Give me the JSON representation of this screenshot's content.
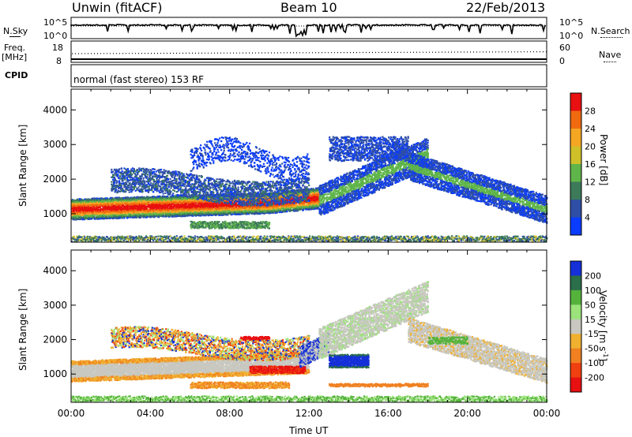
{
  "header": {
    "radar": "Unwin (fitACF)",
    "beam": "Beam 10",
    "date": "22/Feb/2013"
  },
  "top_panels": {
    "nsky_label": "N.Sky",
    "nsky_tick_high": "10^5",
    "nsky_tick_low": "10^0",
    "nsearch_label": "N.Search",
    "nsearch_tick_high": "10^5",
    "nsearch_tick_low": "10^0",
    "freq_label": "Freq.",
    "freq_unit": "[MHz]",
    "freq_tick_high": "18",
    "freq_tick_low": "8",
    "nave_label": "Nave",
    "nave_tick_high": "60",
    "nave_tick_low": "0",
    "cpid_label": "CPID",
    "cpid_text": "normal (fast stereo) 153 RF"
  },
  "chart_data": [
    {
      "type": "heatmap",
      "name": "power",
      "ylabel": "Slant Range [km]",
      "xlabel": "",
      "yticks": [
        1000,
        2000,
        3000,
        4000
      ],
      "ylim": [
        180,
        4600
      ],
      "xlim_hours": [
        0,
        24
      ],
      "colorbar": {
        "label": "Power [dB]",
        "ticks": [
          "4",
          "8",
          "12",
          "16",
          "20",
          "24",
          "28"
        ],
        "colors": [
          "#0a3cff",
          "#2f4fa6",
          "#3c7a5a",
          "#5fb54a",
          "#cfc02a",
          "#f5a623",
          "#f06a10",
          "#e81010"
        ]
      },
      "features": [
        {
          "time_range": [
            "00:00",
            "12:30"
          ],
          "range_km": [
            900,
            1500
          ],
          "value_db": 22
        },
        {
          "time_range": [
            "12:00",
            "18:00"
          ],
          "range_km": [
            1000,
            3300
          ],
          "value_db": 10
        },
        {
          "time_range": [
            "18:00",
            "24:00"
          ],
          "range_km": [
            800,
            2400
          ],
          "value_db": 8
        }
      ]
    },
    {
      "type": "heatmap",
      "name": "velocity",
      "ylabel": "Slant Range [km]",
      "xlabel": "Time UT",
      "xticks": [
        "00:00",
        "04:00",
        "08:00",
        "12:00",
        "16:00",
        "20:00",
        "00:00"
      ],
      "yticks": [
        1000,
        2000,
        3000,
        4000
      ],
      "ylim": [
        180,
        4600
      ],
      "xlim_hours": [
        0,
        24
      ],
      "colorbar": {
        "label": "Velocity [m s",
        "label_exp": "-1",
        "label_close": "]",
        "ticks": [
          "200",
          "100",
          "50",
          "15",
          "-15",
          "-50",
          "-100",
          "-200"
        ],
        "colors": [
          "#1530d8",
          "#2a6e4a",
          "#55b33c",
          "#9be37a",
          "#c8c8c0",
          "#f0b030",
          "#f08020",
          "#f04010",
          "#e81010"
        ]
      },
      "features": [
        {
          "time_range": [
            "00:00",
            "12:00"
          ],
          "range_km": [
            800,
            1400
          ],
          "value_ms": -10
        },
        {
          "time_range": [
            "13:00",
            "15:00"
          ],
          "range_km": [
            1200,
            1600
          ],
          "value_ms": 200
        },
        {
          "time_range": [
            "09:00",
            "11:30"
          ],
          "range_km": [
            1000,
            1300
          ],
          "value_ms": -200
        }
      ]
    }
  ]
}
